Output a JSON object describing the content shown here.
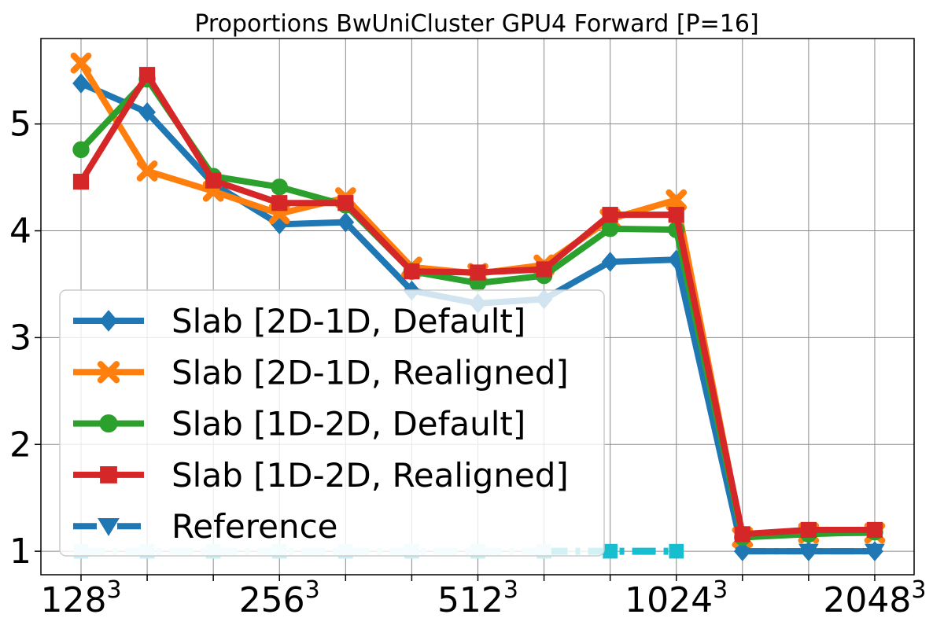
{
  "chart_data": {
    "type": "line",
    "title": "Proportions BwUniCluster GPU4 Forward [P=16]",
    "xlabel": "",
    "ylabel": "",
    "x_index": [
      0,
      1,
      2,
      3,
      4,
      5,
      6,
      7,
      8,
      9,
      10,
      11,
      12
    ],
    "x_tick_labels": [
      {
        "index": 0,
        "base": "128",
        "exp": "3"
      },
      {
        "index": 3,
        "base": "256",
        "exp": "3"
      },
      {
        "index": 6,
        "base": "512",
        "exp": "3"
      },
      {
        "index": 9,
        "base": "1024",
        "exp": "3"
      },
      {
        "index": 12,
        "base": "2048",
        "exp": "3"
      }
    ],
    "ylim": [
      0.78,
      5.8
    ],
    "yticks": [
      1,
      2,
      3,
      4,
      5
    ],
    "grid": true,
    "legend_position": "lower-left",
    "series": [
      {
        "name": "Slab [2D-1D, Default]",
        "color": "#1f77b4",
        "marker": "diamond",
        "style": "solid",
        "values": [
          5.38,
          5.11,
          4.44,
          4.06,
          4.08,
          3.44,
          3.32,
          3.36,
          3.71,
          3.73,
          1.0,
          1.0,
          1.0
        ]
      },
      {
        "name": "Slab [2D-1D, Realigned]",
        "color": "#ff7f0e",
        "marker": "x",
        "style": "solid",
        "values": [
          5.57,
          4.56,
          4.37,
          4.16,
          4.31,
          3.66,
          3.6,
          3.68,
          4.11,
          4.29,
          1.13,
          1.17,
          1.17
        ]
      },
      {
        "name": "Slab [1D-2D, Default]",
        "color": "#2ca02c",
        "marker": "circle",
        "style": "solid",
        "values": [
          4.76,
          5.42,
          4.51,
          4.41,
          4.24,
          3.62,
          3.51,
          3.58,
          4.02,
          4.01,
          1.13,
          1.16,
          1.18
        ]
      },
      {
        "name": "Slab [1D-2D, Realigned]",
        "color": "#d62728",
        "marker": "square",
        "style": "solid",
        "values": [
          4.46,
          5.46,
          4.47,
          4.26,
          4.26,
          3.62,
          3.61,
          3.64,
          4.15,
          4.15,
          1.16,
          1.2,
          1.2
        ]
      },
      {
        "name": "Reference",
        "color": "#1f77b4",
        "marker": "triangle-down",
        "style": "dashdot",
        "values": [
          1.0,
          1.0,
          1.0,
          1.0,
          1.0,
          1.0,
          1.0,
          1.0,
          1.0,
          1.0,
          1.0,
          1.0,
          1.0
        ]
      }
    ],
    "reference_overlay": {
      "values": [
        1.0,
        1.0,
        1.0,
        1.0,
        1.0,
        1.0,
        1.0,
        1.0,
        1.0,
        1.0
      ],
      "light_color": "#c8eef2",
      "dark_color": "#17becf"
    }
  }
}
